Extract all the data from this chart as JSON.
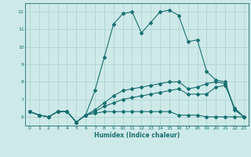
{
  "title": "",
  "xlabel": "Humidex (Indice chaleur)",
  "ylabel": "",
  "background_color": "#cee9e9",
  "line_color": "#1a7070",
  "grid_color": "#b0d4d4",
  "xlim": [
    -0.5,
    23.5
  ],
  "ylim": [
    5.5,
    12.5
  ],
  "yticks": [
    6,
    7,
    8,
    9,
    10,
    11,
    12
  ],
  "xticks": [
    0,
    1,
    2,
    3,
    4,
    5,
    6,
    7,
    8,
    9,
    10,
    11,
    12,
    13,
    14,
    15,
    16,
    17,
    18,
    19,
    20,
    21,
    22,
    23
  ],
  "line1_x": [
    0,
    1,
    2,
    3,
    4,
    5,
    6,
    7,
    8,
    9,
    10,
    11,
    12,
    13,
    14,
    15,
    16,
    17,
    18,
    19,
    20,
    21,
    22,
    23
  ],
  "line1_y": [
    6.3,
    6.1,
    6.0,
    6.3,
    6.3,
    5.7,
    6.1,
    7.5,
    9.4,
    11.3,
    11.9,
    12.0,
    10.8,
    11.4,
    12.0,
    12.1,
    11.8,
    10.3,
    10.4,
    8.6,
    8.1,
    8.0,
    6.4,
    6.0
  ],
  "line2_x": [
    0,
    1,
    2,
    3,
    4,
    5,
    6,
    7,
    8,
    9,
    10,
    11,
    12,
    13,
    14,
    15,
    16,
    17,
    18,
    19,
    20,
    21,
    22,
    23
  ],
  "line2_y": [
    6.3,
    6.1,
    6.0,
    6.3,
    6.3,
    5.7,
    6.1,
    6.2,
    6.3,
    6.3,
    6.3,
    6.3,
    6.3,
    6.3,
    6.3,
    6.3,
    6.1,
    6.1,
    6.1,
    6.0,
    6.0,
    6.0,
    6.0,
    6.0
  ],
  "line3_x": [
    0,
    1,
    2,
    3,
    4,
    5,
    6,
    7,
    8,
    9,
    10,
    11,
    12,
    13,
    14,
    15,
    16,
    17,
    18,
    19,
    20,
    21,
    22,
    23
  ],
  "line3_y": [
    6.3,
    6.1,
    6.0,
    6.3,
    6.3,
    5.7,
    6.1,
    6.3,
    6.6,
    6.8,
    7.0,
    7.1,
    7.2,
    7.3,
    7.4,
    7.5,
    7.6,
    7.3,
    7.3,
    7.3,
    7.7,
    7.8,
    6.5,
    6.0
  ],
  "line4_x": [
    0,
    1,
    2,
    3,
    4,
    5,
    6,
    7,
    8,
    9,
    10,
    11,
    12,
    13,
    14,
    15,
    16,
    17,
    18,
    19,
    20,
    21,
    22,
    23
  ],
  "line4_y": [
    6.3,
    6.1,
    6.0,
    6.3,
    6.3,
    5.7,
    6.1,
    6.4,
    6.8,
    7.2,
    7.5,
    7.6,
    7.7,
    7.8,
    7.9,
    8.0,
    8.0,
    7.6,
    7.7,
    7.9,
    8.0,
    7.9,
    6.5,
    6.0
  ]
}
